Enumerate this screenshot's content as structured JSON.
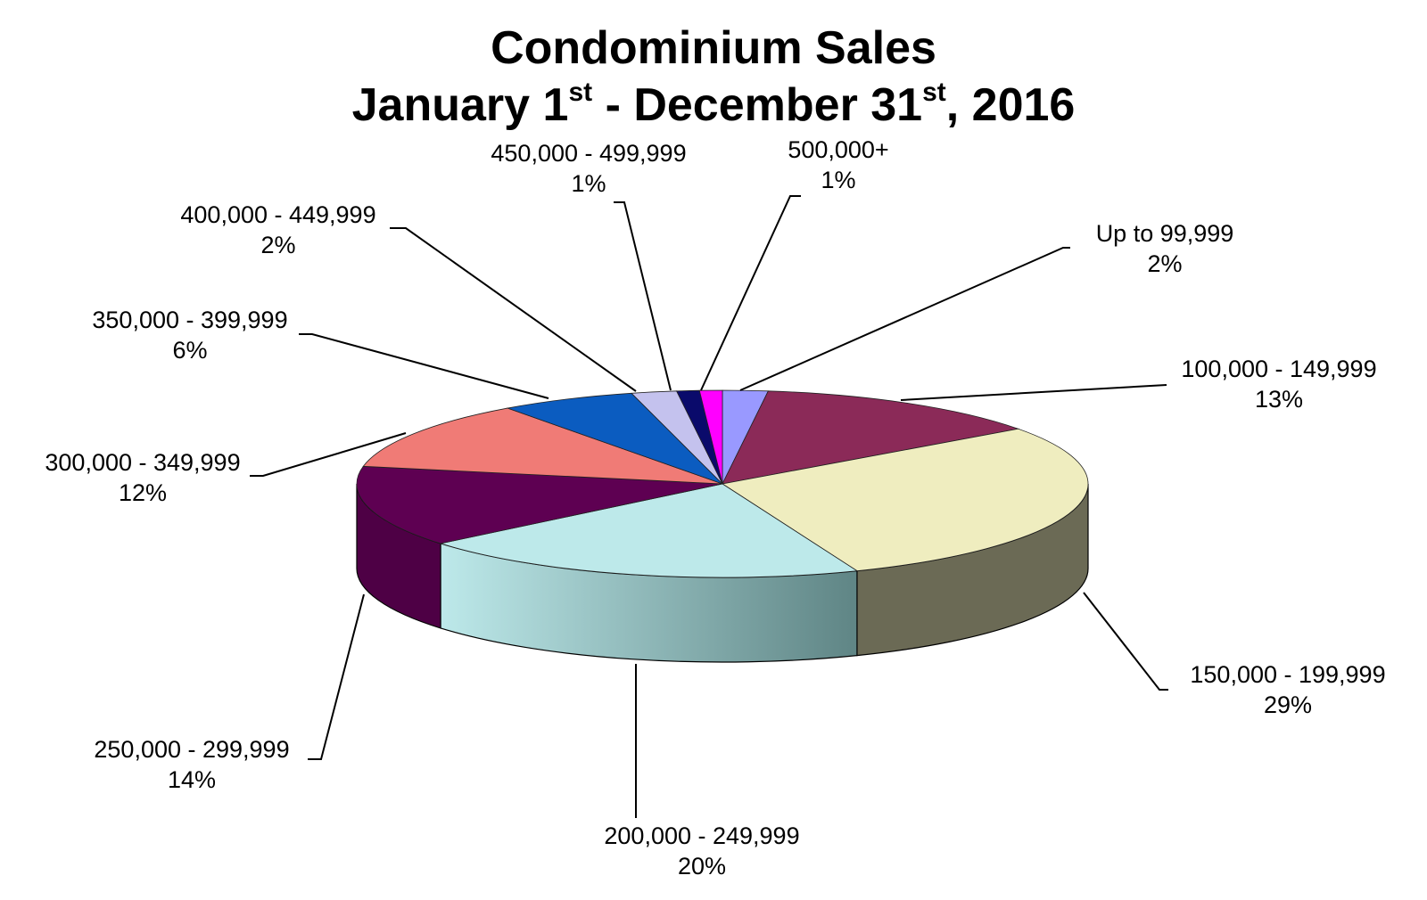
{
  "chart_data": {
    "type": "pie",
    "style": "3d-exploded-free",
    "title_line1": "Condominium Sales",
    "title_line2": {
      "part1": "January 1",
      "sup1": "st",
      "part2": " - December 31",
      "sup2": "st",
      "part3": ", 2016"
    },
    "slices": [
      {
        "label": "Up to 99,999",
        "percent_label": "2%",
        "value": 2,
        "color": "#9999ff"
      },
      {
        "label": "100,000 - 149,999",
        "percent_label": "13%",
        "value": 13,
        "color": "#8b2a58"
      },
      {
        "label": "150,000 - 199,999",
        "percent_label": "29%",
        "value": 29,
        "color": "#efedbf"
      },
      {
        "label": "200,000 - 249,999",
        "percent_label": "20%",
        "value": 20,
        "color": "#bde9ea"
      },
      {
        "label": "250,000 - 299,999",
        "percent_label": "14%",
        "value": 14,
        "color": "#5e0052"
      },
      {
        "label": "300,000 - 349,999",
        "percent_label": "12%",
        "value": 12,
        "color": "#f07b76"
      },
      {
        "label": "350,000 - 399,999",
        "percent_label": "6%",
        "value": 6,
        "color": "#0b5cc0"
      },
      {
        "label": "400,000 - 449,999",
        "percent_label": "2%",
        "value": 2,
        "color": "#c4c2ee"
      },
      {
        "label": "450,000 - 499,999",
        "percent_label": "1%",
        "value": 1,
        "color": "#0a0a6b"
      },
      {
        "label": "500,000+",
        "percent_label": "1%",
        "value": 1,
        "color": "#ff00ff"
      }
    ]
  }
}
